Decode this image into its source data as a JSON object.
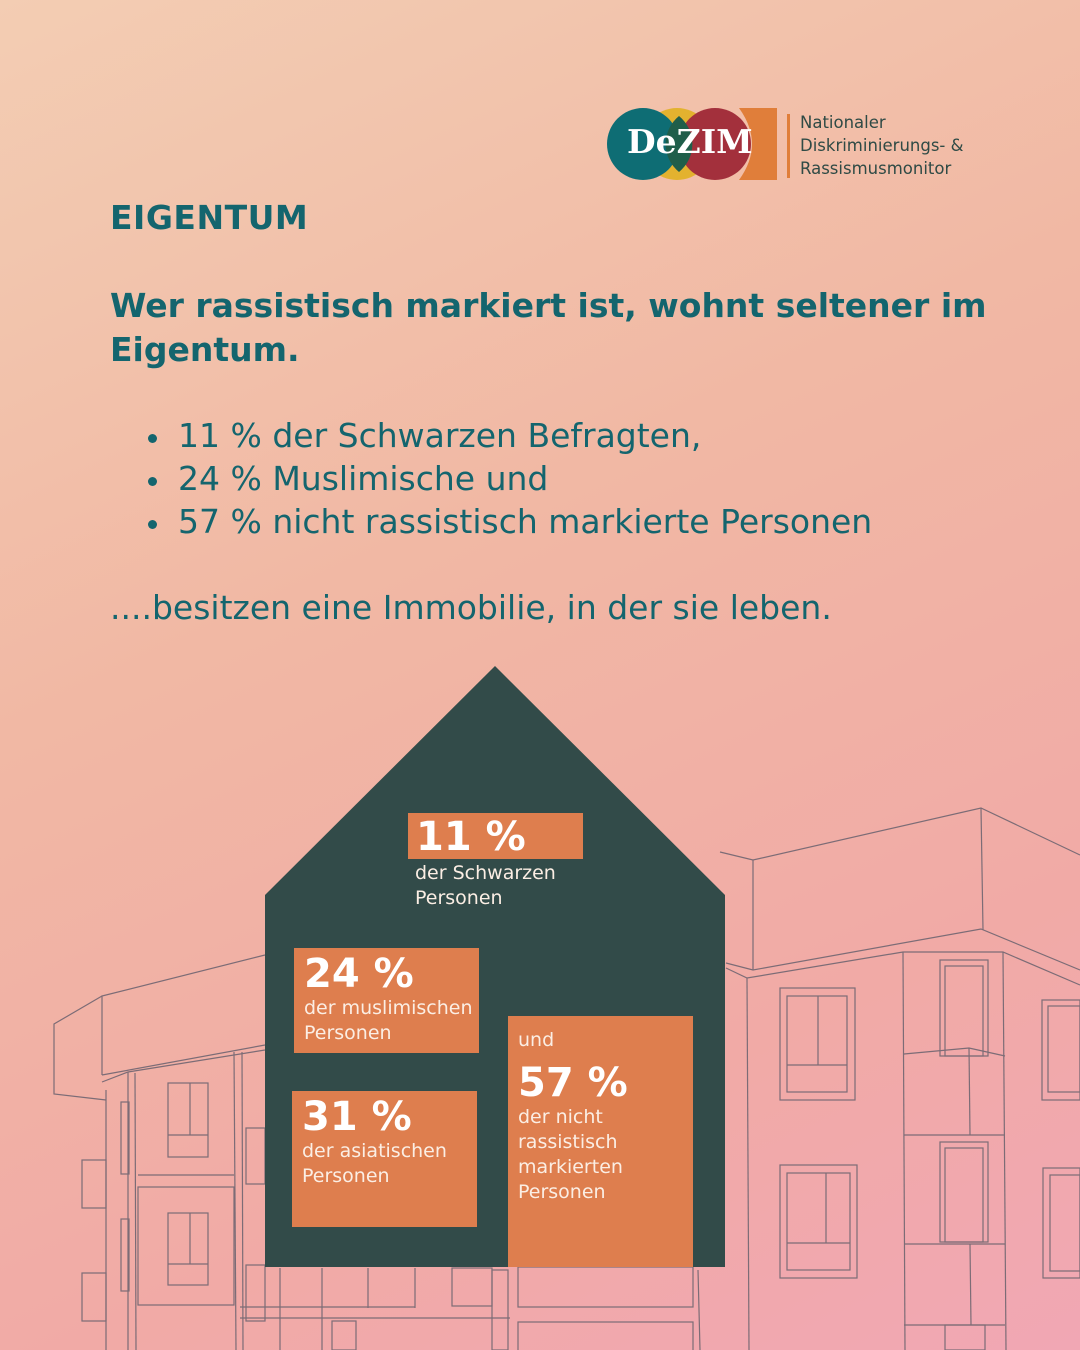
{
  "logo": {
    "wordmark": "DeZIM",
    "lines": [
      "Nationaler",
      "Diskriminierungs- &",
      "Rassismusmonitor"
    ],
    "circle_colors": [
      "#0e6d74",
      "#e3b22f",
      "#a3303c",
      "#e07e3a"
    ]
  },
  "kicker": "EIGENTUM",
  "headline": "Wer rassistisch markiert ist, wohnt seltener im Eigentum.",
  "bullets": [
    "11 % der Schwarzen Befragten,",
    "24 % Muslimische und",
    "57 % nicht rassistisch markierte Personen"
  ],
  "closing": "....besitzen eine Immobilie, in der sie leben.",
  "infographic": {
    "boxes": [
      {
        "value": "11 %",
        "desc_lines": [
          "der Schwarzen",
          "Personen"
        ]
      },
      {
        "value": "24 %",
        "desc_lines": [
          "der muslimischen",
          "Personen"
        ]
      },
      {
        "value": "31 %",
        "desc_lines": [
          "der asiatischen",
          "Personen"
        ]
      },
      {
        "prefix": "und",
        "value": "57 %",
        "desc_lines": [
          "der nicht",
          "rassistisch",
          "markierten",
          "Personen"
        ]
      }
    ]
  },
  "colors": {
    "text_teal": "#14656e",
    "house_dark": "#324b49",
    "box_orange": "#de7e4e"
  }
}
